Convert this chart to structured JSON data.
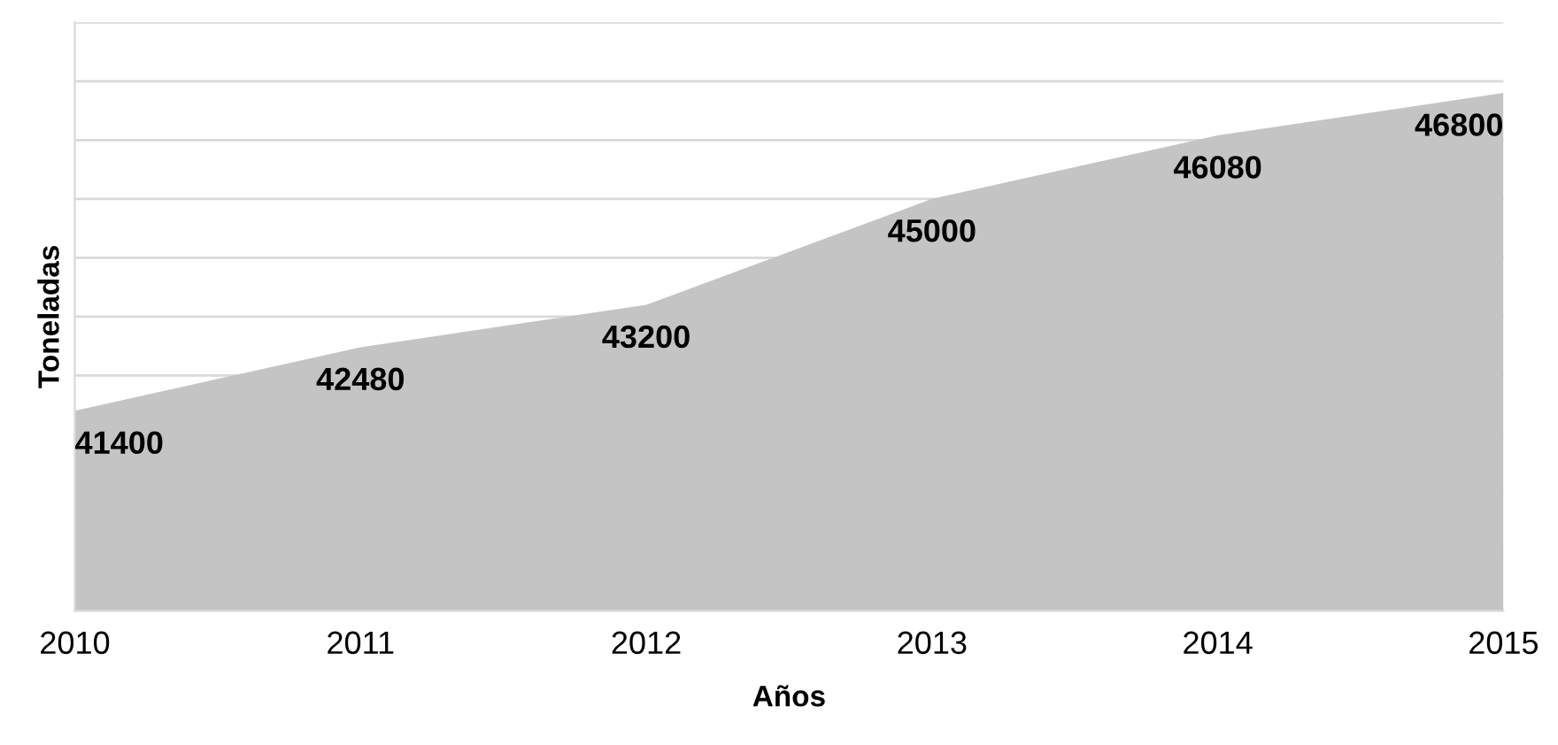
{
  "chart_data": {
    "type": "area",
    "xlabel": "Años",
    "ylabel": "Toneladas",
    "categories": [
      "2010",
      "2011",
      "2012",
      "2013",
      "2014",
      "2015"
    ],
    "values": [
      41400,
      42480,
      43200,
      45000,
      46080,
      46800
    ],
    "color": "#c4c4c4",
    "ylim": [
      38000,
      48000
    ],
    "grid": "y",
    "data_labels": true
  }
}
